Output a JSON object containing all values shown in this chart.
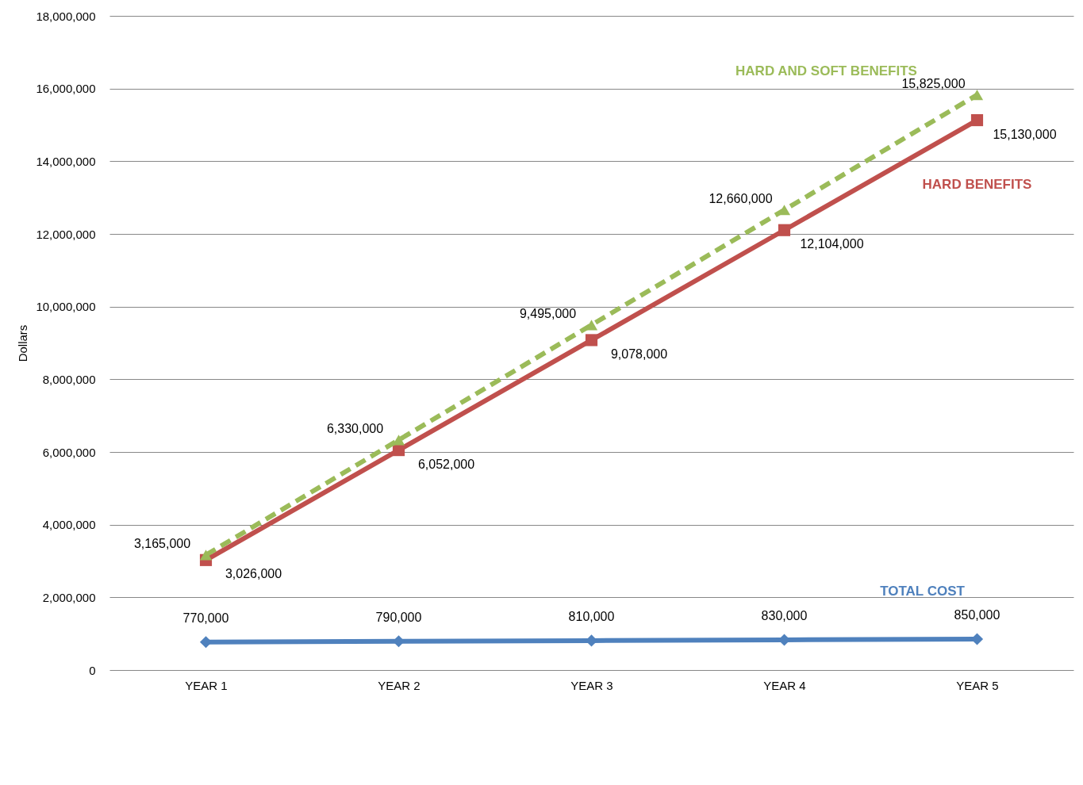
{
  "chart_data": {
    "type": "line",
    "ylabel": "Dollars",
    "categories": [
      "YEAR 1",
      "YEAR 2",
      "YEAR 3",
      "YEAR 4",
      "YEAR 5"
    ],
    "series": [
      {
        "name": "TOTAL COST",
        "color": "#4f81bd",
        "marker": "diamond",
        "line_style": "solid",
        "values": [
          770000,
          790000,
          810000,
          830000,
          850000
        ],
        "value_labels": [
          "770,000",
          "790,000",
          "810,000",
          "830,000",
          "850,000"
        ]
      },
      {
        "name": "HARD BENEFITS",
        "color": "#c0504d",
        "marker": "square",
        "line_style": "solid",
        "values": [
          3026000,
          6052000,
          9078000,
          12104000,
          15130000
        ],
        "value_labels": [
          "3,026,000",
          "6,052,000",
          "9,078,000",
          "12,104,000",
          "15,130,000"
        ]
      },
      {
        "name": "HARD AND SOFT BENEFITS",
        "color": "#9bbb59",
        "marker": "triangle",
        "line_style": "dashed",
        "values": [
          3165000,
          6330000,
          9495000,
          12660000,
          15825000
        ],
        "value_labels": [
          "3,165,000",
          "6,330,000",
          "9,495,000",
          "12,660,000",
          "15,825,000"
        ]
      }
    ],
    "ylim": [
      0,
      18000000
    ],
    "yticks": [
      0,
      {
        "value": 2000000,
        "label": "2,000,000"
      },
      {
        "value": 4000000,
        "label": "4,000,000"
      },
      {
        "value": 6000000,
        "label": "6,000,000"
      },
      {
        "value": 8000000,
        "label": "8,000,000"
      },
      {
        "value": 10000000,
        "label": "10,000,000"
      },
      {
        "value": 12000000,
        "label": "12,000,000"
      },
      {
        "value": 14000000,
        "label": "14,000,000"
      },
      {
        "value": 16000000,
        "label": "16,000,000"
      },
      {
        "value": 18000000,
        "label": "18,000,000"
      }
    ],
    "grid": "y"
  }
}
